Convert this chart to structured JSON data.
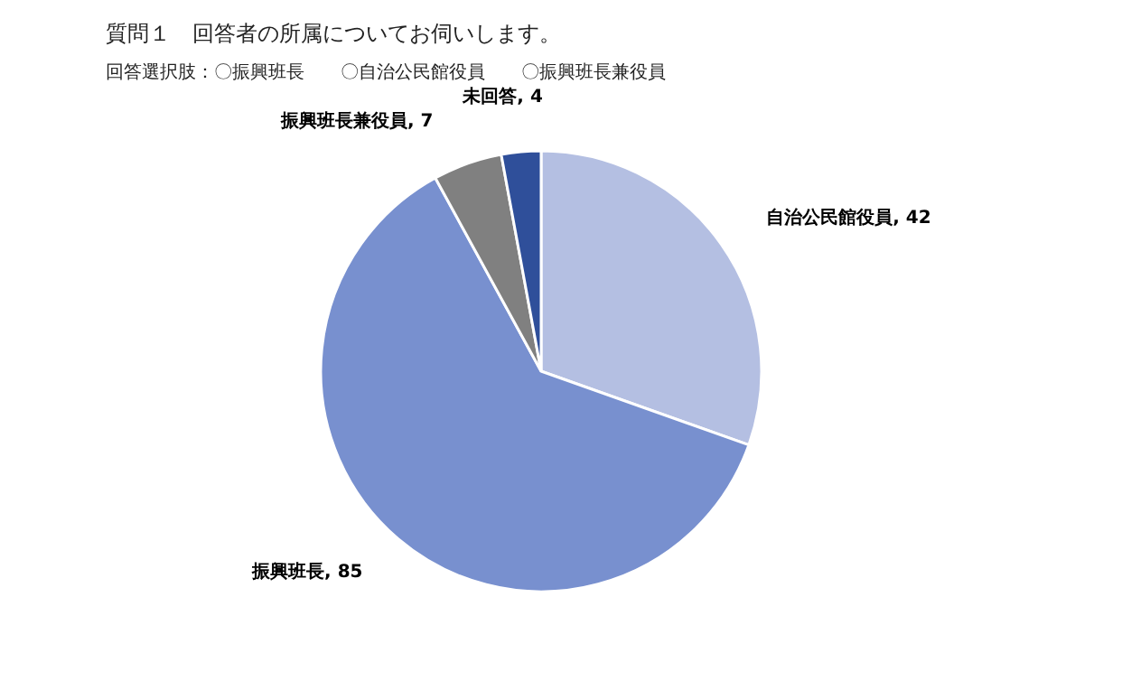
{
  "chart_data": {
    "type": "pie",
    "title": "質問１　回答者の所属についてお伺いします。",
    "subtitle": "回答選択肢：〇振興班長　　〇自治公民館役員　　〇振興班長兼役員",
    "categories": [
      "自治公民館役員",
      "振興班長",
      "振興班長兼役員",
      "未回答"
    ],
    "values": [
      42,
      85,
      7,
      4
    ],
    "colors": [
      "#b4bfe2",
      "#7890cf",
      "#808080",
      "#2f4f9a"
    ],
    "value_labels": [
      ", 42",
      ", 85",
      ", 7",
      ", 4"
    ]
  }
}
